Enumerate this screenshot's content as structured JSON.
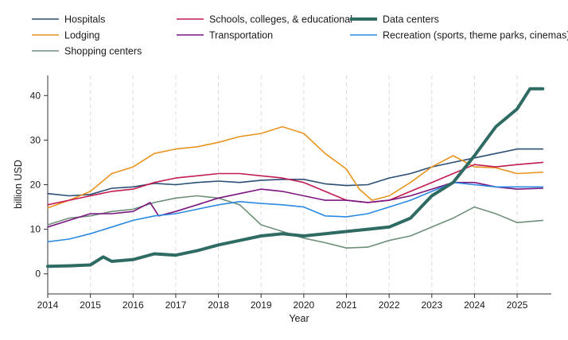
{
  "chart_data": {
    "type": "line",
    "title": "",
    "xlabel": "Year",
    "ylabel": "billion USD",
    "xlim": [
      2014,
      2025.8
    ],
    "ylim": [
      -4.5,
      44.5
    ],
    "xticks": [
      "2014",
      "2015",
      "2016",
      "2017",
      "2018",
      "2019",
      "2020",
      "2021",
      "2022",
      "2023",
      "2024",
      "2025"
    ],
    "yticks": [
      "0",
      "10",
      "20",
      "30",
      "40"
    ],
    "grid": "vertical dashed lines at each year",
    "legend_position": "top",
    "series": [
      {
        "name": "Hospitals",
        "color": "#2a4d74",
        "width": 1.6,
        "x": [
          2014,
          2014.5,
          2015,
          2015.5,
          2016,
          2016.5,
          2017,
          2017.5,
          2018,
          2018.5,
          2019,
          2019.5,
          2020,
          2020.5,
          2021,
          2021.5,
          2022,
          2022.5,
          2023,
          2023.5,
          2024,
          2024.5,
          2025,
          2025.6
        ],
        "values": [
          18,
          17.5,
          17.8,
          19.2,
          19.5,
          20.3,
          20,
          20.5,
          20.8,
          20.5,
          21,
          21.2,
          21.2,
          20.2,
          19.8,
          20,
          21.5,
          22.5,
          24,
          25,
          26,
          27,
          28,
          28
        ]
      },
      {
        "name": "Lodging",
        "color": "#e8941f",
        "width": 1.6,
        "x": [
          2014,
          2014.5,
          2015,
          2015.5,
          2016,
          2016.5,
          2017,
          2017.5,
          2018,
          2018.5,
          2019,
          2019.5,
          2020,
          2020.5,
          2021,
          2021.3,
          2021.6,
          2022,
          2022.5,
          2023,
          2023.5,
          2024,
          2024.5,
          2025,
          2025.6
        ],
        "values": [
          14.8,
          16.5,
          18.5,
          22.5,
          24,
          27,
          28,
          28.5,
          29.5,
          30.8,
          31.5,
          33,
          31.5,
          27,
          23.5,
          19,
          16.5,
          17.5,
          20.5,
          24,
          26.5,
          24,
          23.8,
          22.5,
          22.8
        ]
      },
      {
        "name": "Shopping centers",
        "color": "#6f8f7a",
        "width": 1.6,
        "x": [
          2014,
          2014.5,
          2015,
          2015.5,
          2016,
          2016.5,
          2017,
          2017.5,
          2018,
          2018.5,
          2019,
          2019.5,
          2020,
          2020.5,
          2021,
          2021.5,
          2022,
          2022.5,
          2023,
          2023.5,
          2024,
          2024.5,
          2025,
          2025.6
        ],
        "values": [
          11,
          12.5,
          13,
          14,
          14.5,
          16,
          17,
          17.5,
          17,
          15.5,
          11,
          9.5,
          8,
          7,
          5.8,
          6,
          7.5,
          8.5,
          10.5,
          12.5,
          15,
          13.5,
          11.5,
          12
        ]
      },
      {
        "name": "Schools, colleges, & educational",
        "color": "#c21b4f",
        "width": 1.6,
        "x": [
          2014,
          2014.5,
          2015,
          2015.5,
          2016,
          2016.5,
          2017,
          2017.5,
          2018,
          2018.5,
          2019,
          2019.5,
          2020,
          2020.5,
          2021,
          2021.5,
          2022,
          2022.5,
          2023,
          2023.5,
          2024,
          2024.5,
          2025,
          2025.6
        ],
        "values": [
          15.5,
          16.5,
          17.5,
          18.5,
          19,
          20.5,
          21.5,
          22,
          22.5,
          22.5,
          22,
          21.5,
          20.5,
          18.5,
          16.5,
          16,
          16.5,
          18.5,
          20.5,
          22.5,
          24.5,
          24,
          24.5,
          25
        ]
      },
      {
        "name": "Transportation",
        "color": "#7b1480",
        "width": 1.6,
        "x": [
          2014,
          2014.5,
          2015,
          2015.5,
          2016,
          2016.4,
          2016.6,
          2017,
          2017.5,
          2018,
          2018.5,
          2019,
          2019.5,
          2020,
          2020.5,
          2021,
          2021.5,
          2022,
          2022.5,
          2023,
          2023.5,
          2024,
          2024.5,
          2025,
          2025.6
        ],
        "values": [
          10.5,
          12,
          13.5,
          13.5,
          14,
          16,
          13,
          14,
          15.5,
          17,
          18,
          19,
          18.5,
          17.5,
          16.5,
          16.5,
          16,
          16.5,
          17.5,
          19,
          20.5,
          20.5,
          19.5,
          19,
          19.2
        ]
      },
      {
        "name": "Data centers",
        "color": "#2e6b62",
        "width": 4,
        "x": [
          2014,
          2014.5,
          2015,
          2015.3,
          2015.5,
          2016,
          2016.5,
          2017,
          2017.5,
          2018,
          2018.5,
          2019,
          2019.5,
          2020,
          2020.5,
          2021,
          2021.5,
          2022,
          2022.5,
          2023,
          2023.5,
          2024,
          2024.5,
          2025,
          2025.3,
          2025.6
        ],
        "values": [
          1.7,
          1.8,
          2,
          3.8,
          2.8,
          3.2,
          4.5,
          4.2,
          5.2,
          6.5,
          7.5,
          8.5,
          9,
          8.5,
          9,
          9.5,
          10,
          10.5,
          12.5,
          17.5,
          20.5,
          26.5,
          33,
          37,
          41.5,
          41.5
        ]
      },
      {
        "name": "Recreation (sports, theme parks, cinemas)",
        "color": "#2a89e0",
        "width": 1.6,
        "x": [
          2014,
          2014.5,
          2015,
          2015.5,
          2016,
          2016.5,
          2017,
          2017.5,
          2018,
          2018.5,
          2019,
          2019.5,
          2020,
          2020.5,
          2021,
          2021.5,
          2022,
          2022.5,
          2023,
          2023.5,
          2024,
          2024.5,
          2025,
          2025.6
        ],
        "values": [
          7.2,
          7.8,
          9,
          10.5,
          12,
          13,
          13.5,
          14.5,
          15.5,
          16.2,
          15.8,
          15.5,
          15,
          13,
          12.8,
          13.5,
          15,
          16.5,
          18.5,
          20.5,
          20,
          19.5,
          19.5,
          19.5
        ]
      }
    ]
  }
}
